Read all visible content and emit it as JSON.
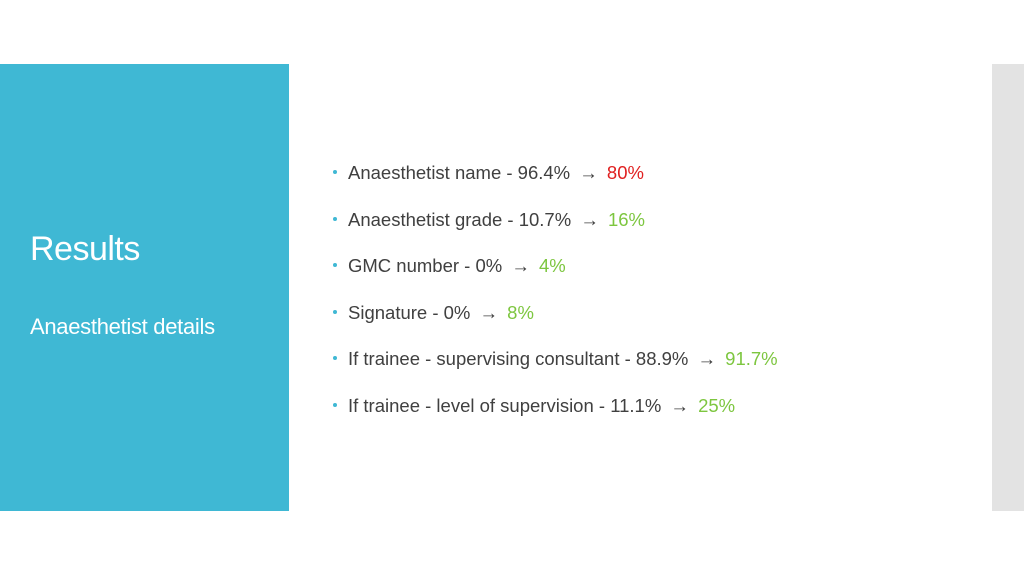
{
  "title": "Results",
  "subtitle": "Anaesthetist details",
  "accent_color": "#3fb8d4",
  "items": [
    {
      "label": "Anaesthetist name - 96.4%",
      "arrow": "→",
      "new_value": "80%",
      "new_color": "#e02020"
    },
    {
      "label": "Anaesthetist grade - 10.7%",
      "arrow": "→",
      "new_value": "16%",
      "new_color": "#7dc63f"
    },
    {
      "label": "GMC number - 0%",
      "arrow": "→",
      "new_value": "4%",
      "new_color": "#7dc63f"
    },
    {
      "label": "Signature - 0%",
      "arrow": "→ ",
      "new_value": "8%",
      "new_color": "#7dc63f"
    },
    {
      "label": "If trainee - supervising consultant -  88.9%",
      "arrow": "→",
      "new_value": "91.7%",
      "new_color": "#7dc63f"
    },
    {
      "label": "If trainee - level of supervision - 11.1%",
      "arrow": "→ ",
      "new_value": "25%",
      "new_color": "#7dc63f"
    }
  ]
}
